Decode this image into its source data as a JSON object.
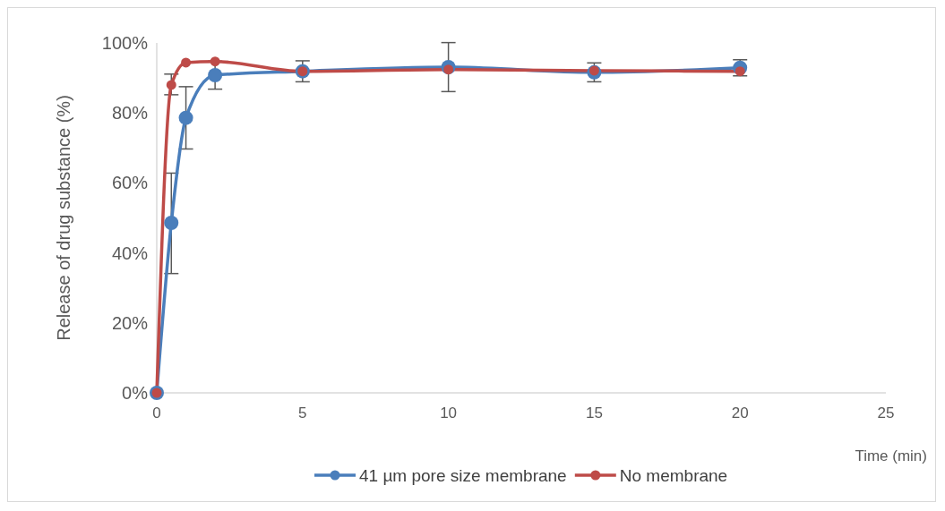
{
  "chart_data": {
    "type": "line",
    "xlabel": "Time (min)",
    "ylabel": "Release of drug substance (%)",
    "x": [
      0,
      0.5,
      1,
      2,
      5,
      10,
      15,
      20
    ],
    "series": [
      {
        "name": "41 µm pore size membrane",
        "color": "#4a7ebb",
        "values": [
          0,
          0.486,
          0.786,
          0.908,
          0.919,
          0.931,
          0.916,
          0.929
        ],
        "errors": [
          null,
          [
            0.341,
            0.628
          ],
          [
            0.697,
            0.875
          ],
          0.04,
          0.03,
          0.07,
          0.027,
          0.023
        ]
      },
      {
        "name": "No membrane",
        "color": "#be4b48",
        "values": [
          0,
          0.88,
          0.944,
          0.947,
          0.919,
          0.924,
          0.921,
          0.919
        ],
        "errors": [
          null,
          [
            0.852,
            0.911
          ],
          null,
          null,
          null,
          null,
          null,
          null
        ]
      }
    ],
    "xlim": [
      0,
      25
    ],
    "xticks": [
      0,
      5,
      10,
      15,
      20,
      25
    ],
    "ylim": [
      0,
      1
    ],
    "yticks": [
      {
        "value": 0,
        "label": "0%"
      },
      {
        "value": 0.2,
        "label": "20%"
      },
      {
        "value": 0.4,
        "label": "40%"
      },
      {
        "value": 0.6,
        "label": "60%"
      },
      {
        "value": 0.8,
        "label": "80%"
      },
      {
        "value": 1,
        "label": "100%"
      }
    ],
    "grid": false,
    "legend": "bottom",
    "marker": "circle",
    "line_style": "solid"
  }
}
